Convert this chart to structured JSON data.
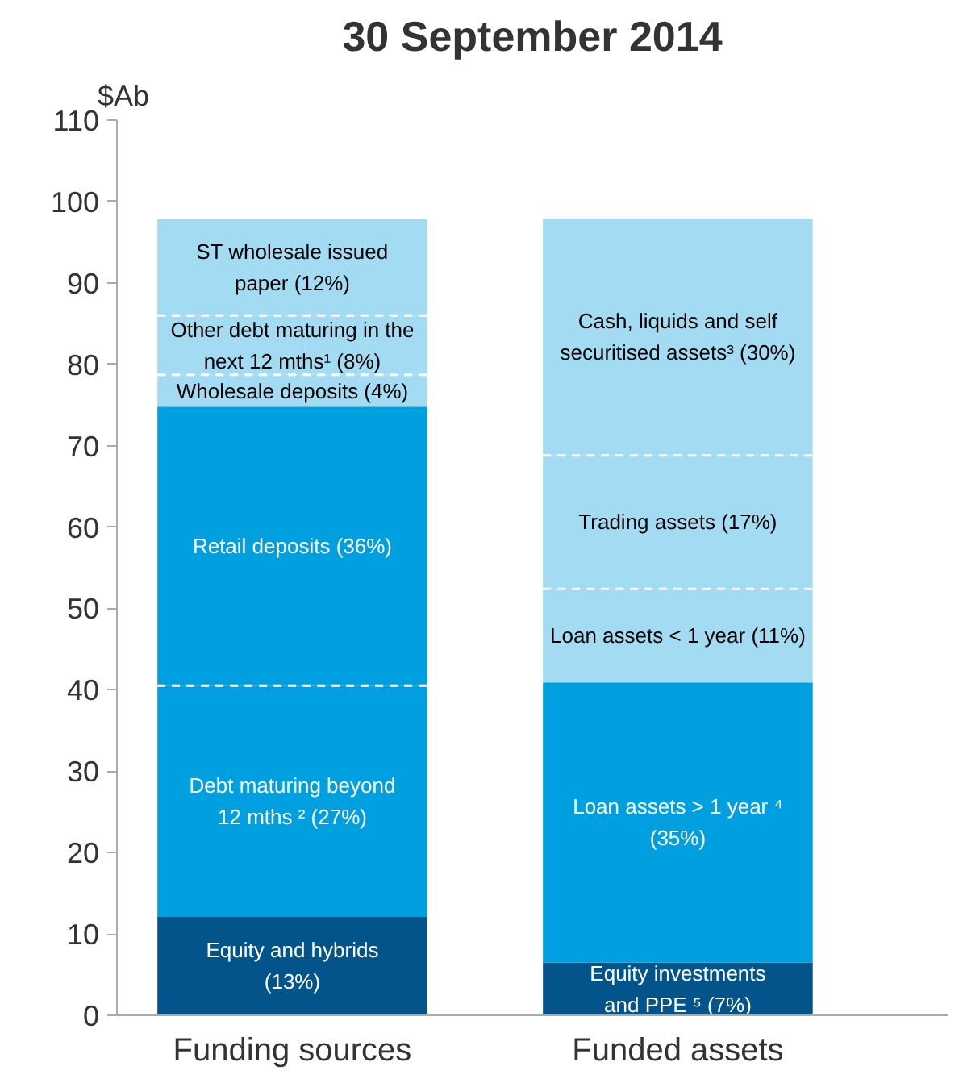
{
  "chart_data": {
    "type": "bar",
    "title": "30 September 2014",
    "ylabel": "$Ab",
    "stacked": true,
    "categories": [
      "Funding sources",
      "Funded assets"
    ],
    "ylim": [
      0,
      110
    ],
    "yticks": [
      0,
      10,
      20,
      30,
      40,
      50,
      60,
      70,
      80,
      90,
      100,
      110
    ],
    "grid": false,
    "series": [
      {
        "name": "Equity and hybrids\n(13%)",
        "color": "#02548a",
        "values": [
          12.1,
          null
        ]
      },
      {
        "name": "Equity investments\nand PPE ⁵ (7%)",
        "color": "#02548a",
        "values": [
          null,
          6.5
        ]
      },
      {
        "name": "Debt maturing beyond\n12 mths ² (27%)",
        "color": "#00a0e0",
        "values": [
          28.4,
          null
        ]
      },
      {
        "name": "Loan assets > 1 year ⁴\n(35%)",
        "color": "#00a0e0",
        "values": [
          null,
          34.4
        ]
      },
      {
        "name": "Retail deposits (36%)",
        "color": "#00a0e0",
        "values": [
          34.3,
          null
        ]
      },
      {
        "name": "Loan assets < 1 year (11%)",
        "color": "#a3dbf3",
        "values": [
          null,
          11.5
        ]
      },
      {
        "name": "Wholesale deposits (4%)",
        "color": "#a3dbf3",
        "values": [
          3.9,
          null
        ]
      },
      {
        "name": "Trading assets (17%)",
        "color": "#a3dbf3",
        "values": [
          null,
          16.4
        ]
      },
      {
        "name": "Other debt maturing in the\nnext 12 mths¹ (8%)",
        "color": "#a3dbf3",
        "values": [
          7.3,
          null
        ]
      },
      {
        "name": "Cash, liquids and self\nsecuritised assets³ (30%)",
        "color": "#a3dbf3",
        "values": [
          null,
          29.1
        ]
      },
      {
        "name": "ST wholesale issued\npaper (12%)",
        "color": "#a3dbf3",
        "values": [
          11.8,
          null
        ]
      }
    ]
  }
}
